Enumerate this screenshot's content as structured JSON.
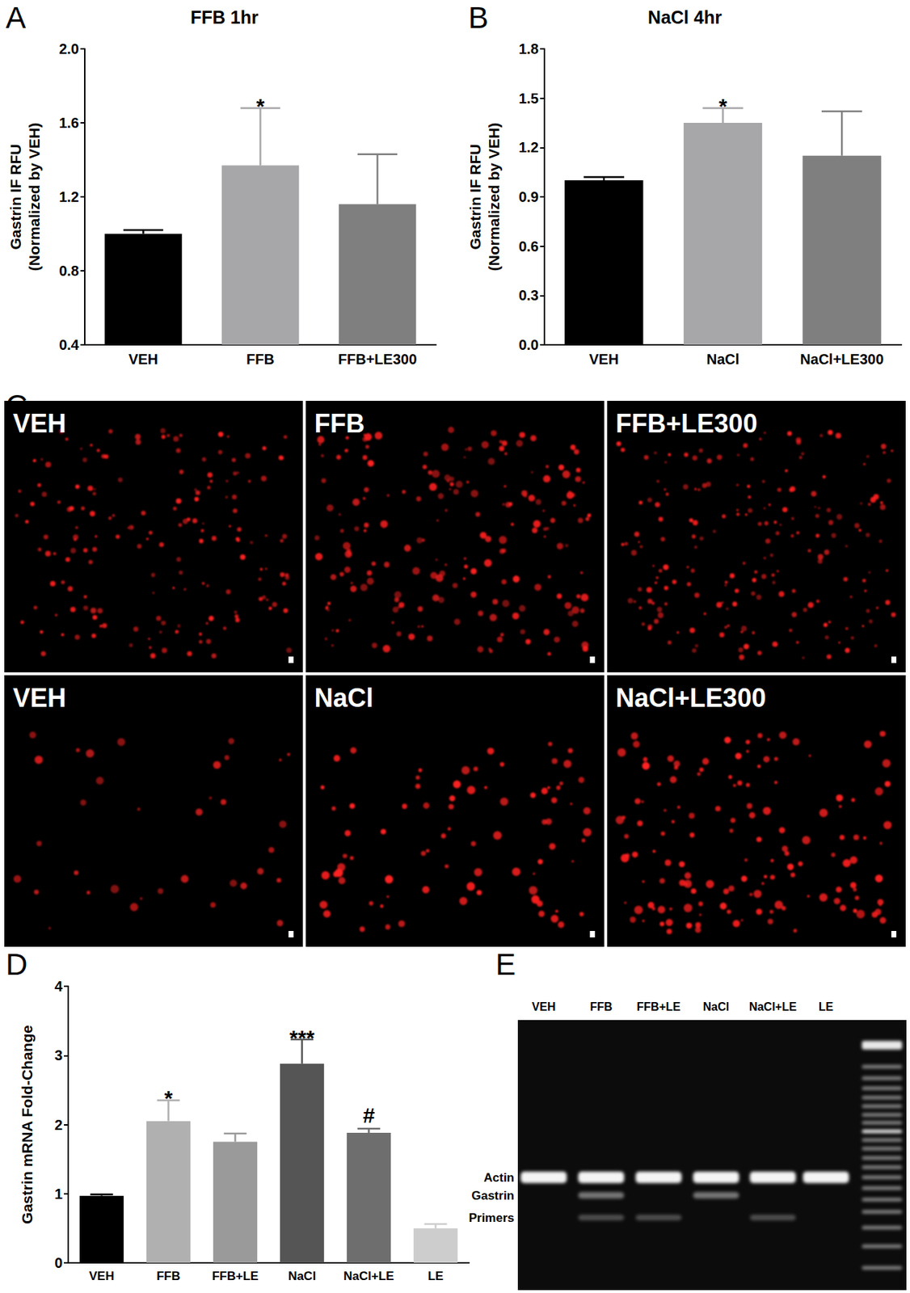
{
  "chart_data": [
    {
      "panel": "A",
      "type": "bar",
      "title": "FFB 1hr",
      "y_label": "Gastrin IF RFU\n(Normalized by VEH)",
      "categories": [
        "VEH",
        "FFB",
        "FFB+LE300"
      ],
      "values": [
        1.0,
        1.37,
        1.16
      ],
      "error": [
        0.02,
        0.31,
        0.27
      ],
      "annotations": [
        null,
        "*",
        null
      ],
      "colors": [
        "#000000",
        "#a7a7aa",
        "#7f7f7f"
      ],
      "ylim": [
        0.4,
        2.0
      ],
      "yticks": [
        0.4,
        0.8,
        1.2,
        1.6,
        {
          "value": 2.0,
          "label": "2.0"
        }
      ],
      "grid": false
    },
    {
      "panel": "B",
      "type": "bar",
      "title": "NaCl 4hr",
      "y_label": "Gastrin IF RFU\n(Normalized by VEH)",
      "categories": [
        "VEH",
        "NaCl",
        "NaCl+LE300"
      ],
      "values": [
        1.0,
        1.35,
        1.15
      ],
      "error": [
        0.02,
        0.09,
        0.27
      ],
      "annotations": [
        null,
        "*",
        null
      ],
      "colors": [
        "#000000",
        "#a7a7aa",
        "#7f7f7f"
      ],
      "ylim": [
        0,
        1.8
      ],
      "yticks": [
        {
          "value": 0,
          "label": "0.0"
        },
        0.3,
        0.6,
        0.9,
        1.2,
        1.5,
        1.8
      ],
      "grid": false
    },
    {
      "panel": "D",
      "type": "bar",
      "y_label": "Gastrin mRNA Fold-Change",
      "categories": [
        "VEH",
        "FFB",
        "FFB+LE",
        "NaCl",
        "NaCl+LE",
        "LE"
      ],
      "values": [
        0.97,
        2.05,
        1.75,
        2.88,
        1.88,
        0.5
      ],
      "error": [
        0.02,
        0.3,
        0.12,
        0.35,
        0.06,
        0.06
      ],
      "annotations": [
        null,
        "*",
        null,
        "***",
        "#",
        null
      ],
      "colors": [
        "#000000",
        "#b0b0b0",
        "#9a9a9a",
        "#555555",
        "#6e6e6e",
        "#cdcdcd"
      ],
      "ylim": [
        0,
        4
      ],
      "yticks": [
        0,
        1,
        2,
        3,
        4
      ],
      "grid": false
    }
  ],
  "micrograph": {
    "panel": "C",
    "cells": [
      "VEH",
      "FFB",
      "FFB+LE300",
      "VEH",
      "NaCl",
      "NaCl+LE300"
    ]
  },
  "gel": {
    "panel": "E",
    "lanes": [
      "VEH",
      "FFB",
      "FFB+LE",
      "NaCl",
      "NaCl+LE",
      "LE"
    ],
    "bands": [
      {
        "label": "Actin",
        "present": [
          true,
          true,
          true,
          true,
          true,
          true
        ]
      },
      {
        "label": "Gastrin",
        "present": [
          false,
          true,
          false,
          true,
          false,
          false
        ]
      },
      {
        "label": "Primers",
        "present": [
          false,
          true,
          true,
          false,
          true,
          false
        ]
      }
    ]
  }
}
